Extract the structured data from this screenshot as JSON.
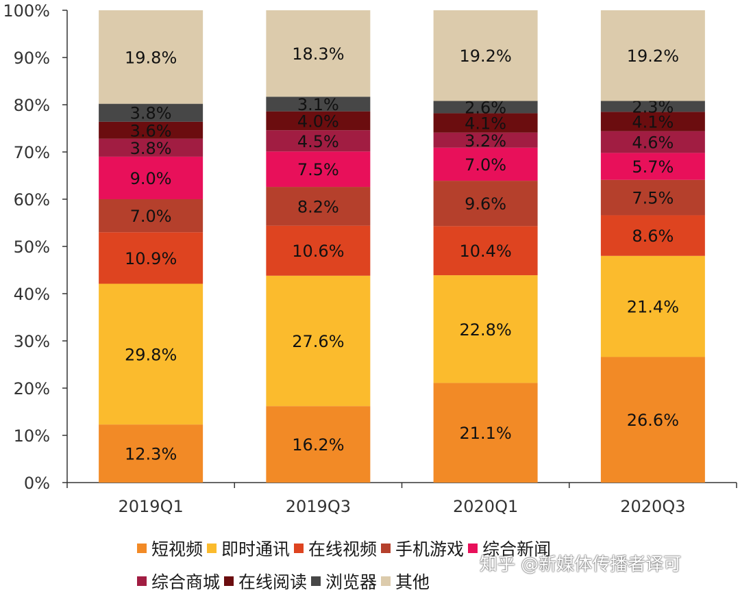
{
  "chart_data": {
    "type": "bar",
    "stacked": true,
    "categories": [
      "2019Q1",
      "2019Q3",
      "2020Q1",
      "2020Q3"
    ],
    "ylim": [
      0,
      100
    ],
    "yticks": [
      "0%",
      "10%",
      "20%",
      "30%",
      "40%",
      "50%",
      "60%",
      "70%",
      "80%",
      "90%",
      "100%"
    ],
    "series": [
      {
        "name": "短视频",
        "color": "#f28a26",
        "values": [
          12.3,
          16.2,
          21.1,
          26.6
        ],
        "labels": [
          "12.3%",
          "16.2%",
          "21.1%",
          "26.6%"
        ]
      },
      {
        "name": "即时通讯",
        "color": "#fbbb2d",
        "values": [
          29.8,
          27.6,
          22.8,
          21.4
        ],
        "labels": [
          "29.8%",
          "27.6%",
          "22.8%",
          "21.4%"
        ]
      },
      {
        "name": "在线视频",
        "color": "#de4420",
        "values": [
          10.9,
          10.6,
          10.4,
          8.6
        ],
        "labels": [
          "10.9%",
          "10.6%",
          "10.4%",
          "8.6%"
        ]
      },
      {
        "name": "手机游戏",
        "color": "#b5402c",
        "values": [
          7.0,
          8.2,
          9.6,
          7.5
        ],
        "labels": [
          "7.0%",
          "8.2%",
          "9.6%",
          "7.5%"
        ]
      },
      {
        "name": "综合新闻",
        "color": "#e8105a",
        "values": [
          9.0,
          7.5,
          7.0,
          5.7
        ],
        "labels": [
          "9.0%",
          "7.5%",
          "7.0%",
          "5.7%"
        ]
      },
      {
        "name": "综合商城",
        "color": "#a11d42",
        "values": [
          3.8,
          4.5,
          3.2,
          4.6
        ],
        "labels": [
          "3.8%",
          "4.5%",
          "3.2%",
          "4.6%"
        ]
      },
      {
        "name": "在线阅读",
        "color": "#6b0d0f",
        "values": [
          3.6,
          4.0,
          4.1,
          4.1
        ],
        "labels": [
          "3.6%",
          "4.0%",
          "4.1%",
          "4.1%"
        ]
      },
      {
        "name": "浏览器",
        "color": "#474747",
        "values": [
          3.8,
          3.1,
          2.6,
          2.3
        ],
        "labels": [
          "3.8%",
          "3.1%",
          "2.6%",
          "2.3%"
        ]
      },
      {
        "name": "其他",
        "color": "#dccbac",
        "values": [
          19.8,
          18.3,
          19.2,
          19.2
        ],
        "labels": [
          "19.8%",
          "18.3%",
          "19.2%",
          "19.2%"
        ]
      }
    ],
    "legend": {
      "placement": "bottom"
    },
    "grid": false
  },
  "watermark": "知乎 @新媒体传播者译可"
}
